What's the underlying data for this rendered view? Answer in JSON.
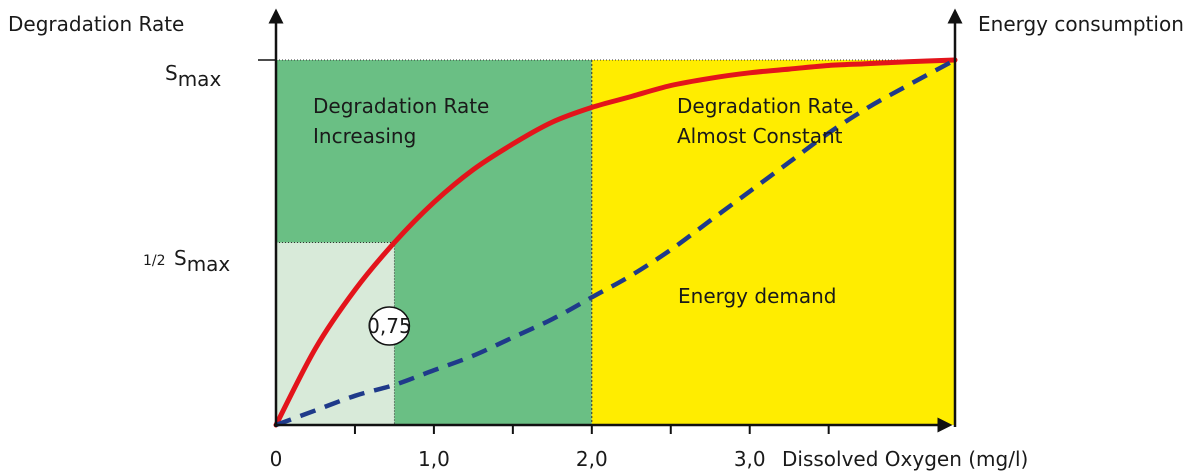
{
  "chart_data": {
    "type": "line",
    "ylabel_left": "Degradation Rate",
    "ylabel_right": "Energy consumption",
    "xlabel": "Dissolved Oxygen (mg/l)",
    "x_ticks": [
      "0",
      "1,0",
      "2,0",
      "3,0"
    ],
    "y_tick_smax": {
      "main": "S",
      "sub": "max"
    },
    "y_tick_half_smax": {
      "pre": "1/2 ",
      "main": "S",
      "sub": "max"
    },
    "xlim": [
      0,
      4.3
    ],
    "regions": [
      {
        "name": "Degradation Rate Increasing",
        "lines": [
          "Degradation Rate",
          "Increasing"
        ],
        "x_from": 0,
        "x_to": 2.0,
        "color": "#6abf84"
      },
      {
        "name": "Degradation Rate Almost Constant",
        "lines": [
          "Degradation Rate",
          "Almost Constant"
        ],
        "x_from": 2.0,
        "x_to": 4.3,
        "color": "#ffed00"
      },
      {
        "name": "half-rate box",
        "x_from": 0,
        "x_to": 0.75,
        "y_to": 0.5,
        "color": "#d8ead9"
      }
    ],
    "series": [
      {
        "style": "solid",
        "color": "#e3141b",
        "x": [
          0,
          0.25,
          0.5,
          0.75,
          1.0,
          1.25,
          1.5,
          1.75,
          2.0,
          2.25,
          2.5,
          2.75,
          3.0,
          3.25,
          3.5,
          3.75,
          4.0,
          4.3
        ],
        "y": [
          0,
          0.21,
          0.37,
          0.5,
          0.61,
          0.7,
          0.77,
          0.83,
          0.87,
          0.9,
          0.93,
          0.95,
          0.965,
          0.975,
          0.985,
          0.99,
          0.995,
          1.0
        ]
      },
      {
        "name": "Energy demand",
        "style": "dashed",
        "color": "#1f3a8a",
        "x": [
          0,
          0.25,
          0.5,
          0.75,
          1.0,
          1.25,
          1.5,
          1.75,
          2.0,
          2.25,
          2.5,
          2.75,
          3.0,
          3.25,
          3.5,
          3.75,
          4.0,
          4.3
        ],
        "y": [
          0,
          0.04,
          0.08,
          0.11,
          0.15,
          0.19,
          0.24,
          0.29,
          0.35,
          0.41,
          0.48,
          0.56,
          0.64,
          0.72,
          0.8,
          0.87,
          0.93,
          1.0
        ]
      }
    ],
    "annotation": "0,75",
    "annotation_x": 0.75,
    "grid": false
  }
}
